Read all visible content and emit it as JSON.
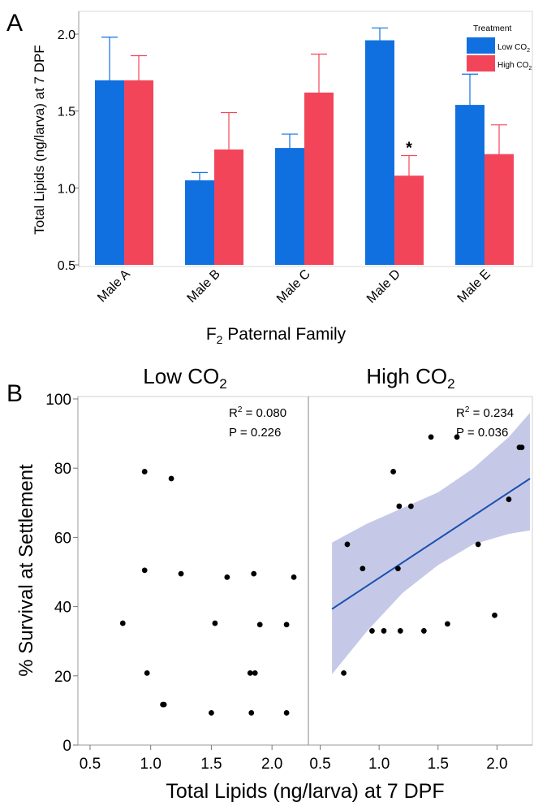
{
  "panelA": {
    "label": "A",
    "ylabel": "Total Lipids (ng/larva) at 7 DPF",
    "xlabel_main": "F",
    "xlabel_sub": "2",
    "xlabel_rest": " Paternal Family",
    "legend": {
      "title": "Treatment",
      "low": {
        "main": "Low CO",
        "sub": "2"
      },
      "high": {
        "main": "High CO",
        "sub": "2"
      }
    },
    "significance": "*"
  },
  "panelB": {
    "label": "B",
    "ylabel": "% Survival at Settlement",
    "xlabel": "Total Lipids (ng/larva) at 7 DPF",
    "left_title": {
      "main": "Low CO",
      "sub": "2"
    },
    "right_title": {
      "main": "High CO",
      "sub": "2"
    },
    "left_stats": {
      "r2_main": "R",
      "r2_sup": "2",
      "r2_val": " = 0.080",
      "p": "P = 0.226"
    },
    "right_stats": {
      "r2_main": "R",
      "r2_sup": "2",
      "r2_val": " = 0.234",
      "p": "P = 0.036"
    }
  },
  "colors": {
    "low": "#1170e0",
    "high": "#f3455a",
    "band": "#c2c6e6",
    "fit": "#1a4fb0"
  },
  "chart_data": [
    {
      "type": "bar",
      "categories": [
        "Male A",
        "Male B",
        "Male C",
        "Male D",
        "Male E"
      ],
      "ylim": [
        0.5,
        2.0
      ],
      "yticks": [
        "0.5",
        "1.0",
        "1.5",
        "2.0"
      ],
      "ytick_values": [
        0.5,
        1.0,
        1.5,
        2.0
      ],
      "series": [
        {
          "name": "Low CO2",
          "values": [
            1.7,
            1.05,
            1.26,
            1.96,
            1.54
          ],
          "err_upper": [
            1.98,
            1.1,
            1.35,
            2.04,
            1.74
          ],
          "err_lower": [
            1.42,
            1.0,
            1.17,
            1.88,
            1.34
          ]
        },
        {
          "name": "High CO2",
          "values": [
            1.7,
            1.25,
            1.62,
            1.08,
            1.22
          ],
          "err_upper": [
            1.86,
            1.49,
            1.87,
            1.21,
            1.41
          ],
          "err_lower": [
            1.54,
            1.03,
            1.38,
            0.97,
            1.03
          ]
        }
      ],
      "annotation": {
        "text": "*",
        "category": "Male D",
        "series": "High CO2"
      }
    },
    {
      "type": "scatter",
      "panel": "Low CO2",
      "xlim": [
        0.4,
        2.3
      ],
      "ylim": [
        0,
        100
      ],
      "xticks": [
        "0.5",
        "1.0",
        "1.5",
        "2.0"
      ],
      "xtick_values": [
        0.5,
        1.0,
        1.5,
        2.0
      ],
      "yticks": [
        "0",
        "20",
        "40",
        "60",
        "80",
        "100"
      ],
      "ytick_values": [
        0,
        20,
        40,
        60,
        80,
        100
      ],
      "points": [
        [
          0.95,
          79
        ],
        [
          1.17,
          77
        ],
        [
          0.95,
          50.5
        ],
        [
          1.25,
          49.5
        ],
        [
          1.63,
          48.5
        ],
        [
          1.85,
          49.5
        ],
        [
          2.18,
          48.5
        ],
        [
          0.77,
          35.2
        ],
        [
          1.53,
          35.2
        ],
        [
          1.9,
          34.8
        ],
        [
          2.12,
          34.8
        ],
        [
          0.97,
          20.8
        ],
        [
          1.82,
          20.8
        ],
        [
          1.86,
          20.8
        ],
        [
          1.1,
          11.7
        ],
        [
          1.11,
          11.7
        ],
        [
          1.5,
          9.3
        ],
        [
          1.83,
          9.3
        ],
        [
          2.12,
          9.3
        ]
      ]
    },
    {
      "type": "scatter",
      "panel": "High CO2",
      "xlim": [
        0.4,
        2.3
      ],
      "ylim": [
        0,
        100
      ],
      "xticks": [
        "0.5",
        "1.0",
        "1.5",
        "2.0"
      ],
      "xtick_values": [
        0.5,
        1.0,
        1.5,
        2.0
      ],
      "points": [
        [
          1.44,
          89
        ],
        [
          1.66,
          89
        ],
        [
          2.19,
          86
        ],
        [
          2.21,
          86
        ],
        [
          1.12,
          79
        ],
        [
          2.1,
          71
        ],
        [
          1.17,
          69
        ],
        [
          1.27,
          69
        ],
        [
          0.73,
          58
        ],
        [
          1.84,
          58
        ],
        [
          0.86,
          51
        ],
        [
          1.16,
          51
        ],
        [
          0.94,
          33
        ],
        [
          1.04,
          33
        ],
        [
          1.18,
          33
        ],
        [
          1.38,
          33
        ],
        [
          1.58,
          35
        ],
        [
          1.98,
          37.5
        ],
        [
          0.7,
          20.8
        ]
      ],
      "fit": {
        "x": [
          0.6,
          2.28
        ],
        "y": [
          39.3,
          77
        ]
      },
      "band": {
        "x": [
          0.6,
          0.9,
          1.2,
          1.5,
          1.8,
          2.1,
          2.28
        ],
        "upper": [
          58.5,
          64,
          68.5,
          73,
          80,
          89,
          96
        ],
        "lower": [
          20.5,
          33,
          44,
          52,
          58,
          61,
          62
        ]
      }
    }
  ]
}
